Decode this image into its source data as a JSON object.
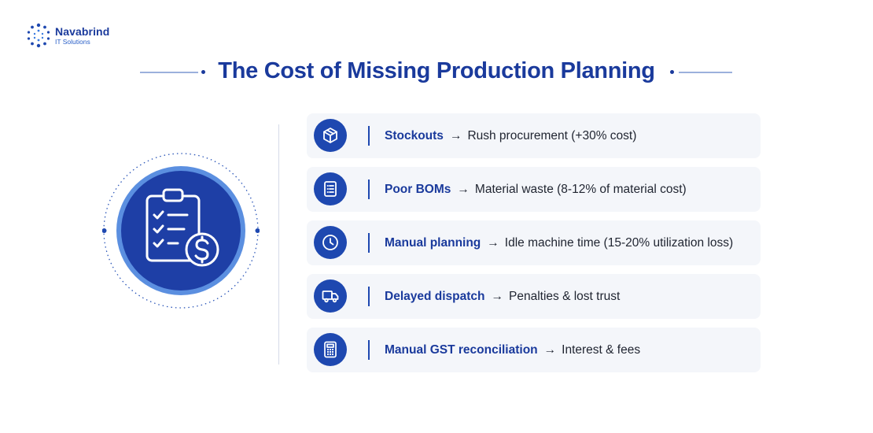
{
  "brand": {
    "name": "Navabrind",
    "tagline": "IT Solutions",
    "primary_color": "#1a3a9c",
    "accent_color": "#1e48b0"
  },
  "title": "The Cost of Missing Production Planning",
  "hero_icon": "clipboard-checklist-dollar-icon",
  "arrow_symbol": "→",
  "items": [
    {
      "icon": "box-icon",
      "label": "Stockouts",
      "consequence": "Rush procurement (+30% cost)"
    },
    {
      "icon": "list-document-icon",
      "label": "Poor BOMs",
      "consequence": "Material waste (8-12% of material cost)"
    },
    {
      "icon": "clock-icon",
      "label": "Manual planning",
      "consequence": "Idle machine time (15-20% utilization loss)"
    },
    {
      "icon": "delivery-truck-icon",
      "label": "Delayed dispatch",
      "consequence": "Penalties & lost trust"
    },
    {
      "icon": "calculator-icon",
      "label": "Manual GST reconciliation",
      "consequence": "Interest & fees"
    }
  ]
}
